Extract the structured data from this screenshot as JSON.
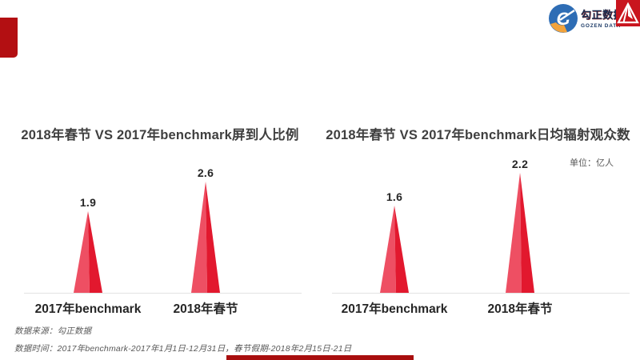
{
  "brand": {
    "logo_text": "勾正数据",
    "logo_subtext": "GOZEN DATA"
  },
  "colors": {
    "triangle_light": "#ee4f63",
    "triangle_dark": "#e2182e",
    "accent_red": "#b30f12",
    "logo_blue": "#2e6db5",
    "logo_orange": "#f2a33c",
    "logo_square_red": "#c9151e"
  },
  "footer": {
    "source": "数据来源：勾正数据",
    "time": "数据时间：2017年benchmark-2017年1月1日-12月31日，春节假期-2018年2月15日-21日"
  },
  "chart_data": [
    {
      "type": "bar",
      "title": "2018年春节 VS 2017年benchmark屏到人比例",
      "unit": "",
      "categories": [
        "2017年benchmark",
        "2018年春节"
      ],
      "values": [
        1.9,
        2.6
      ],
      "ylim": [
        0,
        2.8
      ],
      "xlabel": "",
      "ylabel": "",
      "grid": false,
      "legend": "none",
      "bar_shape": "triangle"
    },
    {
      "type": "bar",
      "title": "2018年春节 VS 2017年benchmark日均辐射观众数",
      "unit": "单位：亿人",
      "categories": [
        "2017年benchmark",
        "2018年春节"
      ],
      "values": [
        1.6,
        2.2
      ],
      "ylim": [
        0,
        2.35
      ],
      "xlabel": "",
      "ylabel": "",
      "grid": false,
      "legend": "none",
      "bar_shape": "triangle"
    }
  ]
}
